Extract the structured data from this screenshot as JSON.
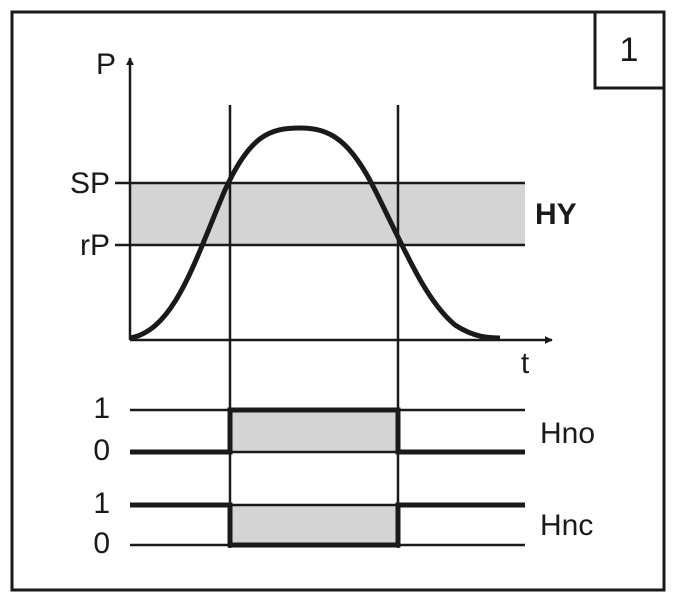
{
  "badge": "1",
  "graph": {
    "y_axis_label": "P",
    "x_axis_label": "t",
    "set_point": "SP",
    "reset_point": "rP",
    "hysteresis": "HY"
  },
  "outputs": [
    {
      "high": "1",
      "low": "0",
      "label": "Hno"
    },
    {
      "high": "1",
      "low": "0",
      "label": "Hnc"
    }
  ]
}
